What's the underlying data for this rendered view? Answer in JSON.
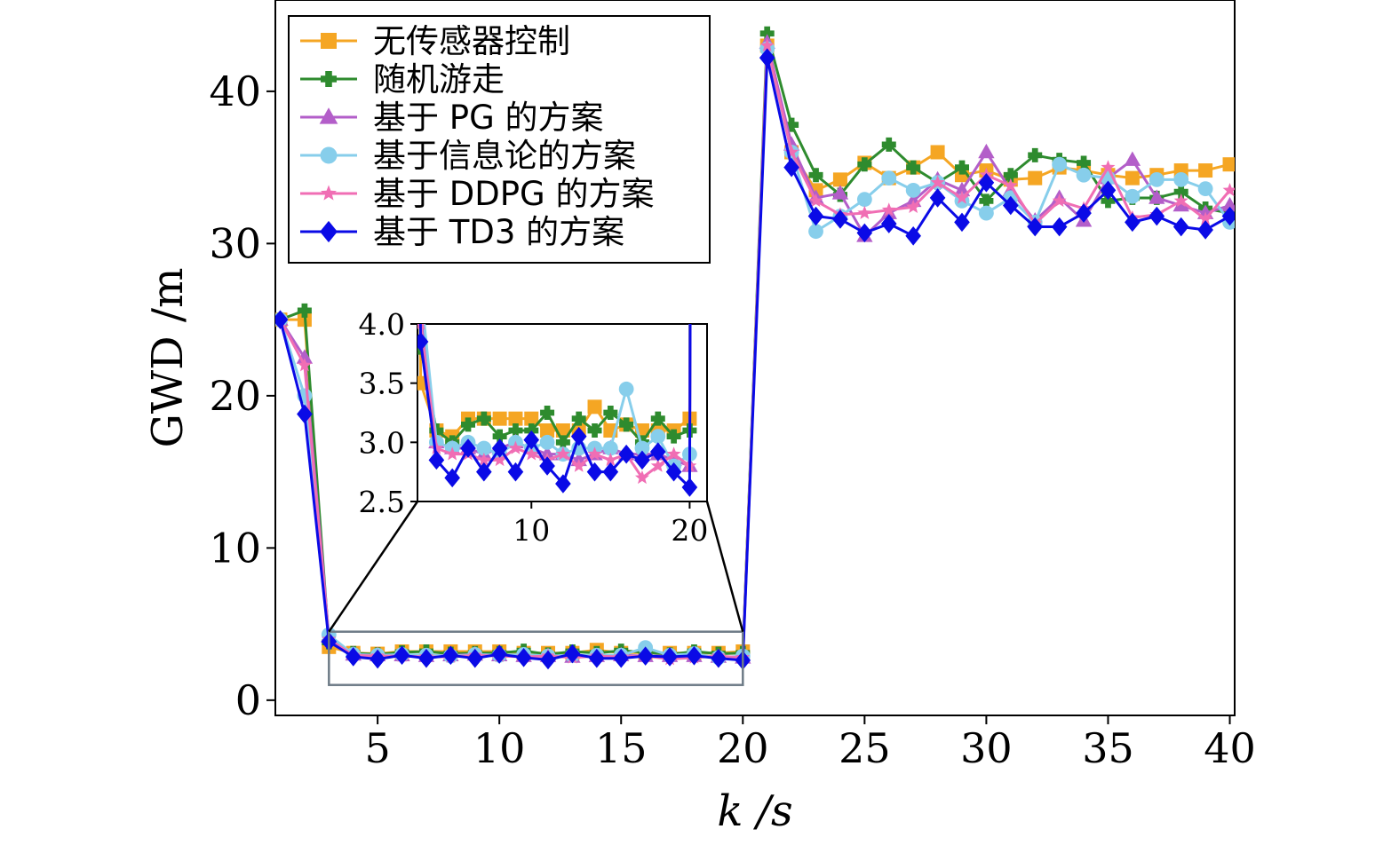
{
  "chart_data": {
    "type": "line",
    "xlabel": "k /s",
    "ylabel": "GWD /m",
    "xlim": [
      0.8,
      40.2
    ],
    "ylim": [
      -1,
      46
    ],
    "xticks": [
      5,
      10,
      15,
      20,
      25,
      30,
      35,
      40
    ],
    "yticks": [
      0,
      10,
      20,
      30,
      40
    ],
    "xtick_labels": [
      "5",
      "10",
      "15",
      "20",
      "25",
      "30",
      "35",
      "40"
    ],
    "ytick_labels": [
      "0",
      "10",
      "20",
      "30",
      "40"
    ],
    "grid": false,
    "legend_position": "top-left",
    "x": [
      1,
      2,
      3,
      4,
      5,
      6,
      7,
      8,
      9,
      10,
      11,
      12,
      13,
      14,
      15,
      16,
      17,
      18,
      19,
      20,
      21,
      22,
      23,
      24,
      25,
      26,
      27,
      28,
      29,
      30,
      31,
      32,
      33,
      34,
      35,
      36,
      37,
      38,
      39,
      40
    ],
    "series": [
      {
        "name": "无传感器控制",
        "color": "#f5a623",
        "marker": "square",
        "values": [
          25,
          25,
          3.5,
          3.1,
          3.05,
          3.2,
          3.2,
          3.2,
          3.2,
          3.2,
          3.1,
          3.1,
          3.1,
          3.3,
          3.1,
          3.15,
          3.1,
          3.1,
          3.1,
          3.2,
          43,
          36,
          33.5,
          34.2,
          35.3,
          34.3,
          35.0,
          36.0,
          34.5,
          34.8,
          34.2,
          34.3,
          35.0,
          34.8,
          34.5,
          34.3,
          34.5,
          34.8,
          34.8,
          35.2
        ]
      },
      {
        "name": "随机游走",
        "color": "#2e8b2e",
        "marker": "plus",
        "values": [
          25,
          25.6,
          3.8,
          3.1,
          3.0,
          3.15,
          3.2,
          3.05,
          3.1,
          3.1,
          3.25,
          3.0,
          3.2,
          3.1,
          3.25,
          3.15,
          3.0,
          3.2,
          3.05,
          3.1,
          43.8,
          37.8,
          34.5,
          33.2,
          35.2,
          36.5,
          35.0,
          34.0,
          35.0,
          32.8,
          34.5,
          35.8,
          35.5,
          35.3,
          32.8,
          33.0,
          33.0,
          33.4,
          32.3,
          32.0
        ]
      },
      {
        "name": "基于 PG 的方案",
        "color": "#b35ec9",
        "marker": "triangle",
        "values": [
          25,
          22.5,
          4.2,
          3.0,
          2.95,
          2.95,
          2.9,
          2.95,
          3.0,
          2.95,
          2.9,
          2.9,
          2.85,
          2.9,
          2.95,
          2.9,
          2.9,
          2.9,
          2.85,
          2.8,
          43.2,
          36.5,
          33.0,
          33.3,
          30.5,
          32.0,
          32.8,
          34.2,
          33.5,
          36.0,
          33.5,
          31.5,
          33.0,
          31.5,
          34.3,
          35.5,
          33.0,
          32.5,
          32.0,
          32.5
        ]
      },
      {
        "name": "基于信息论的方案",
        "color": "#87ceeb",
        "marker": "circle",
        "values": [
          25,
          20.0,
          4.3,
          3.0,
          2.95,
          3.0,
          2.95,
          2.9,
          3.0,
          2.95,
          3.0,
          2.9,
          2.95,
          2.95,
          2.95,
          3.45,
          2.95,
          3.05,
          2.8,
          2.9,
          42.8,
          36.0,
          30.8,
          31.8,
          32.9,
          34.3,
          33.5,
          34.0,
          32.8,
          32.0,
          33.0,
          31.4,
          35.2,
          34.5,
          34.3,
          33.1,
          34.2,
          34.2,
          33.6,
          31.4
        ]
      },
      {
        "name": "基于 DDPG 的方案",
        "color": "#f06eb4",
        "marker": "star",
        "values": [
          25,
          22.0,
          4.0,
          2.95,
          2.9,
          2.9,
          2.85,
          2.85,
          2.95,
          2.9,
          2.85,
          2.9,
          2.8,
          2.9,
          2.85,
          2.9,
          2.7,
          2.8,
          2.9,
          2.8,
          43.0,
          36.0,
          32.8,
          31.9,
          32.0,
          32.2,
          32.4,
          34.0,
          33.0,
          34.5,
          33.8,
          31.3,
          32.8,
          32.3,
          35.0,
          31.7,
          31.9,
          32.8,
          31.6,
          33.5
        ]
      },
      {
        "name": "基于 TD3 的方案",
        "color": "#0a0ae6",
        "marker": "diamond",
        "values": [
          25,
          18.8,
          3.85,
          2.85,
          2.7,
          2.95,
          2.75,
          2.95,
          2.75,
          3.02,
          2.8,
          2.65,
          3.05,
          2.75,
          2.75,
          2.9,
          2.85,
          2.92,
          2.75,
          2.62,
          42.2,
          35.0,
          31.8,
          31.6,
          30.7,
          31.3,
          30.5,
          33.0,
          31.4,
          34.0,
          32.5,
          31.1,
          31.1,
          32.0,
          33.5,
          31.4,
          31.8,
          31.1,
          30.9,
          31.8
        ]
      }
    ],
    "inset": {
      "xlim": [
        2.8,
        21.1
      ],
      "ylim": [
        2.5,
        4.0
      ],
      "xticks": [
        10,
        20
      ],
      "yticks": [
        2.5,
        3.0,
        3.5,
        4.0
      ],
      "xtick_labels": [
        "10",
        "20"
      ],
      "ytick_labels": [
        "2.5",
        "3.0",
        "3.5",
        "4.0"
      ],
      "zoom_region": {
        "x": [
          3,
          20
        ],
        "y": [
          1,
          4.5
        ]
      }
    }
  }
}
